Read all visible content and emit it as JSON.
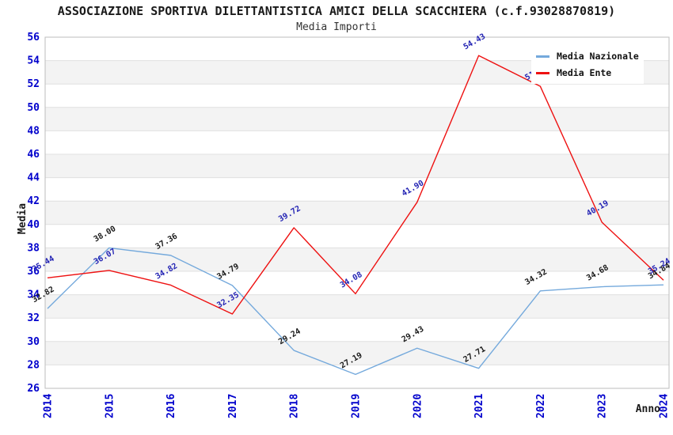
{
  "chart_data": {
    "type": "line",
    "title": "ASSOCIAZIONE SPORTIVA DILETTANTISTICA AMICI DELLA SCACCHIERA (c.f.93028870819)",
    "subtitle": "Media Importi",
    "xlabel": "Anno",
    "ylabel": "Media",
    "ylim": [
      26,
      56
    ],
    "ytick_step": 2,
    "grid": true,
    "legend_position": "top-right",
    "categories": [
      "2014",
      "2015",
      "2016",
      "2017",
      "2018",
      "2019",
      "2020",
      "2021",
      "2022",
      "2023",
      "2024"
    ],
    "series": [
      {
        "name": "Media Nazionale",
        "color": "#74a9dc",
        "label_color": "#1a1a1a",
        "values": [
          32.82,
          38.0,
          37.36,
          34.79,
          29.24,
          27.19,
          29.43,
          27.71,
          34.32,
          34.68,
          34.84
        ]
      },
      {
        "name": "Media Ente",
        "color": "#ee1111",
        "label_color": "#2424b4",
        "values": [
          35.44,
          36.07,
          34.82,
          32.35,
          39.72,
          34.08,
          41.9,
          54.43,
          51.8,
          40.19,
          35.24
        ],
        "estimated_value_indexes": [
          8
        ]
      }
    ],
    "colors": {
      "axis_tick": "#0000cc",
      "gridline": "#e0e0e0",
      "band": "#f3f3f3",
      "plot_border": "#bdbdbd",
      "background": "#ffffff"
    }
  }
}
